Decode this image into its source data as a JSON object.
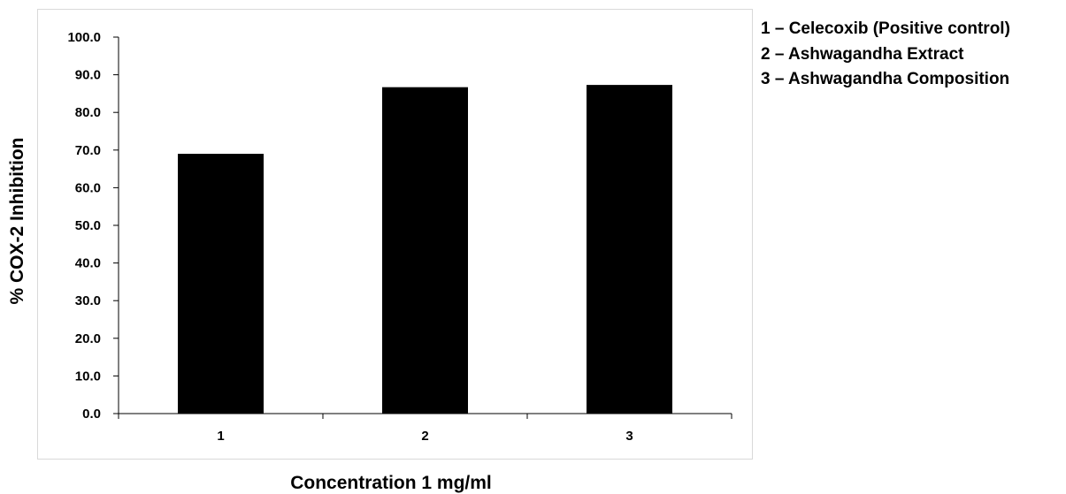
{
  "chart_data": {
    "type": "bar",
    "categories": [
      "1",
      "2",
      "3"
    ],
    "values": [
      69.0,
      86.7,
      87.3
    ],
    "title": "",
    "xlabel": "Concentration 1 mg/ml",
    "ylabel": "% COX-2  Inhibition",
    "ylim": [
      0,
      100
    ],
    "yticks": [
      "0.0",
      "10.0",
      "20.0",
      "30.0",
      "40.0",
      "50.0",
      "60.0",
      "70.0",
      "80.0",
      "90.0",
      "100.0"
    ],
    "grid": false,
    "bar_color": "#000000",
    "legend_placement": "right",
    "legend": [
      "1 – Celecoxib (Positive control)",
      "2 – Ashwagandha Extract",
      "3 – Ashwagandha Composition"
    ]
  }
}
